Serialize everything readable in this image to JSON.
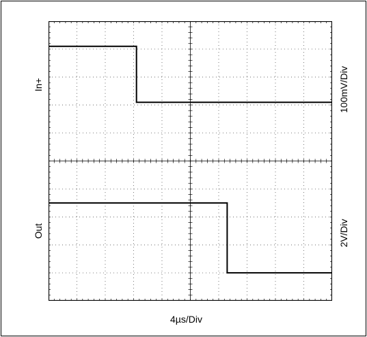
{
  "chart_data": {
    "type": "line",
    "title": "",
    "grid": true,
    "divisions": {
      "x": 10,
      "y": 10
    },
    "xlabel": "4µs/Div",
    "traces": [
      {
        "name": "In+",
        "scale_label": "100mV/Div",
        "x": [
          0,
          3.1,
          3.1,
          10
        ],
        "y": [
          9.1,
          9.1,
          7.1,
          7.1
        ]
      },
      {
        "name": "Out",
        "scale_label": "2V/Div",
        "x": [
          0,
          6.3,
          6.3,
          10
        ],
        "y": [
          3.5,
          3.5,
          1.0,
          1.0
        ]
      }
    ]
  }
}
